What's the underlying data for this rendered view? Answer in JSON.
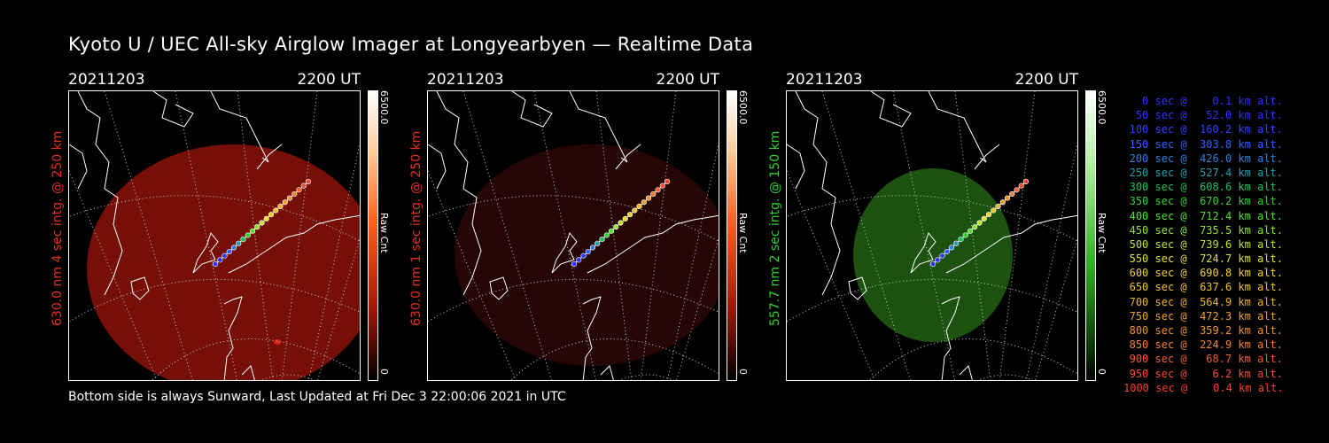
{
  "title": "Kyoto U / UEC All-sky Airglow Imager at Longyearbyen — Realtime Data",
  "footer": "Bottom side is always Sunward, Last Updated at Fri Dec  3 22:00:06 2021 in UTC",
  "panels": [
    {
      "date": "20211203",
      "time": "2200 UT",
      "label": "630.0 nm 4 sec intg. @ 250 km",
      "label_color": "#e03020",
      "cbar_max": "6500.0",
      "cbar_min": "0",
      "cbar_unit": "Raw Cnt",
      "colormap": "red",
      "image_color": "#8a1208"
    },
    {
      "date": "20211203",
      "time": "2200 UT",
      "label": "630.0 nm 1 sec intg. @ 250 km",
      "label_color": "#e03020",
      "cbar_max": "6500.0",
      "cbar_min": "0",
      "cbar_unit": "Raw Cnt",
      "colormap": "red",
      "image_color": "#2a0605"
    },
    {
      "date": "20211203",
      "time": "2200 UT",
      "label": "557.7 nm 2 sec intg. @ 150 km",
      "label_color": "#30d030",
      "cbar_max": "6500.0",
      "cbar_min": "0",
      "cbar_unit": "Raw Cnt",
      "colormap": "green",
      "image_color": "#1f5a12"
    }
  ],
  "legend": [
    {
      "text": "0 sec @    0.1 km alt.",
      "color": "#3030ff"
    },
    {
      "text": "50 sec @   52.0 km alt.",
      "color": "#3030ff"
    },
    {
      "text": "100 sec @  160.2 km alt.",
      "color": "#3040ff"
    },
    {
      "text": "150 sec @  303.8 km alt.",
      "color": "#3060ff"
    },
    {
      "text": "200 sec @  426.0 km alt.",
      "color": "#3080e0"
    },
    {
      "text": "250 sec @  527.4 km alt.",
      "color": "#20a0b0"
    },
    {
      "text": "300 sec @  608.6 km alt.",
      "color": "#20c060"
    },
    {
      "text": "350 sec @  670.2 km alt.",
      "color": "#30d030"
    },
    {
      "text": "400 sec @  712.4 km alt.",
      "color": "#50e030"
    },
    {
      "text": "450 sec @  735.5 km alt.",
      "color": "#90e030"
    },
    {
      "text": "500 sec @  739.6 km alt.",
      "color": "#c0e030"
    },
    {
      "text": "550 sec @  724.7 km alt.",
      "color": "#e0e030"
    },
    {
      "text": "600 sec @  690.8 km alt.",
      "color": "#f0d030"
    },
    {
      "text": "650 sec @  637.6 km alt.",
      "color": "#f0c030"
    },
    {
      "text": "700 sec @  564.9 km alt.",
      "color": "#f0b030"
    },
    {
      "text": "750 sec @  472.3 km alt.",
      "color": "#f0a030"
    },
    {
      "text": "800 sec @  359.2 km alt.",
      "color": "#f09030"
    },
    {
      "text": "850 sec @  224.9 km alt.",
      "color": "#f08030"
    },
    {
      "text": "900 sec @   68.7 km alt.",
      "color": "#f06030"
    },
    {
      "text": "950 sec @    6.2 km alt.",
      "color": "#f05030"
    },
    {
      "text": "1000 sec @    0.4 km alt.",
      "color": "#f04030"
    }
  ]
}
